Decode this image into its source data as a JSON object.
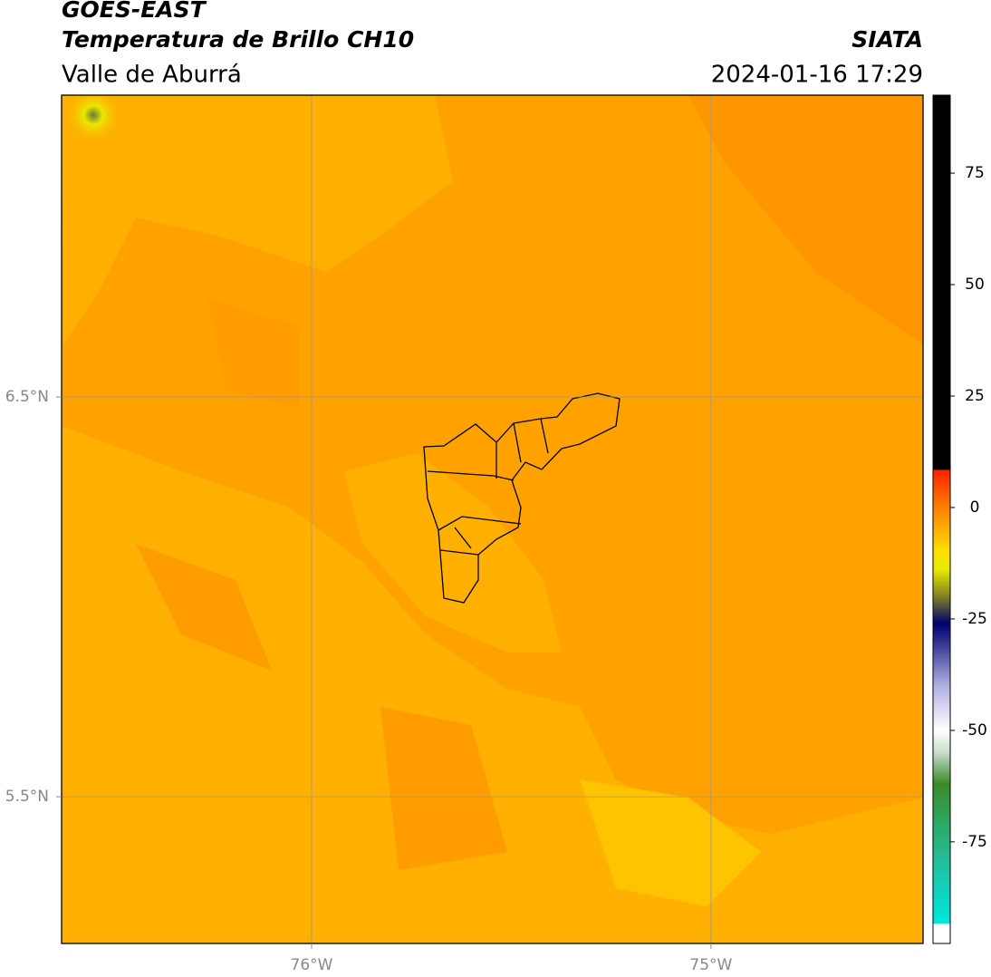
{
  "chart_data": {
    "type": "map",
    "title": "GOES-EAST",
    "subtitle": "Temperatura de Brillo CH10",
    "region": "Valle de Aburrá",
    "source": "SIATA",
    "datetime": "2024-01-16 17:29",
    "xlim": [
      -76.626,
      -74.469
    ],
    "ylim": [
      5.133,
      7.255
    ],
    "xticks": [
      {
        "value": -76,
        "label": "76°W"
      },
      {
        "value": -75,
        "label": "75°W"
      }
    ],
    "yticks": [
      {
        "value": 6.5,
        "label": "6.5°N"
      },
      {
        "value": 5.5,
        "label": "5.5°N"
      }
    ],
    "grid": true,
    "colorbar": {
      "lim": [
        -97.8,
        92.5
      ],
      "ticks": [
        75,
        50,
        25,
        0,
        -25,
        -50,
        -75
      ],
      "stops": [
        {
          "value": -93.4,
          "color": "#ffffff"
        },
        {
          "value": -93.3,
          "color": "#00e8e0"
        },
        {
          "value": -80,
          "color": "#20c0a0"
        },
        {
          "value": -68,
          "color": "#30a050"
        },
        {
          "value": -62,
          "color": "#3a8a2a"
        },
        {
          "value": -55,
          "color": "#c8dcc8"
        },
        {
          "value": -50,
          "color": "#ffffff"
        },
        {
          "value": -40,
          "color": "#b0b0e0"
        },
        {
          "value": -30,
          "color": "#303090"
        },
        {
          "value": -26,
          "color": "#000070"
        },
        {
          "value": -20,
          "color": "#808020"
        },
        {
          "value": -14,
          "color": "#e8e800"
        },
        {
          "value": -10,
          "color": "#ffe000"
        },
        {
          "value": -5,
          "color": "#ffb000"
        },
        {
          "value": 0,
          "color": "#ff8000"
        },
        {
          "value": 8.4,
          "color": "#ff2000"
        },
        {
          "value": 8.5,
          "color": "#000000"
        }
      ]
    }
  }
}
